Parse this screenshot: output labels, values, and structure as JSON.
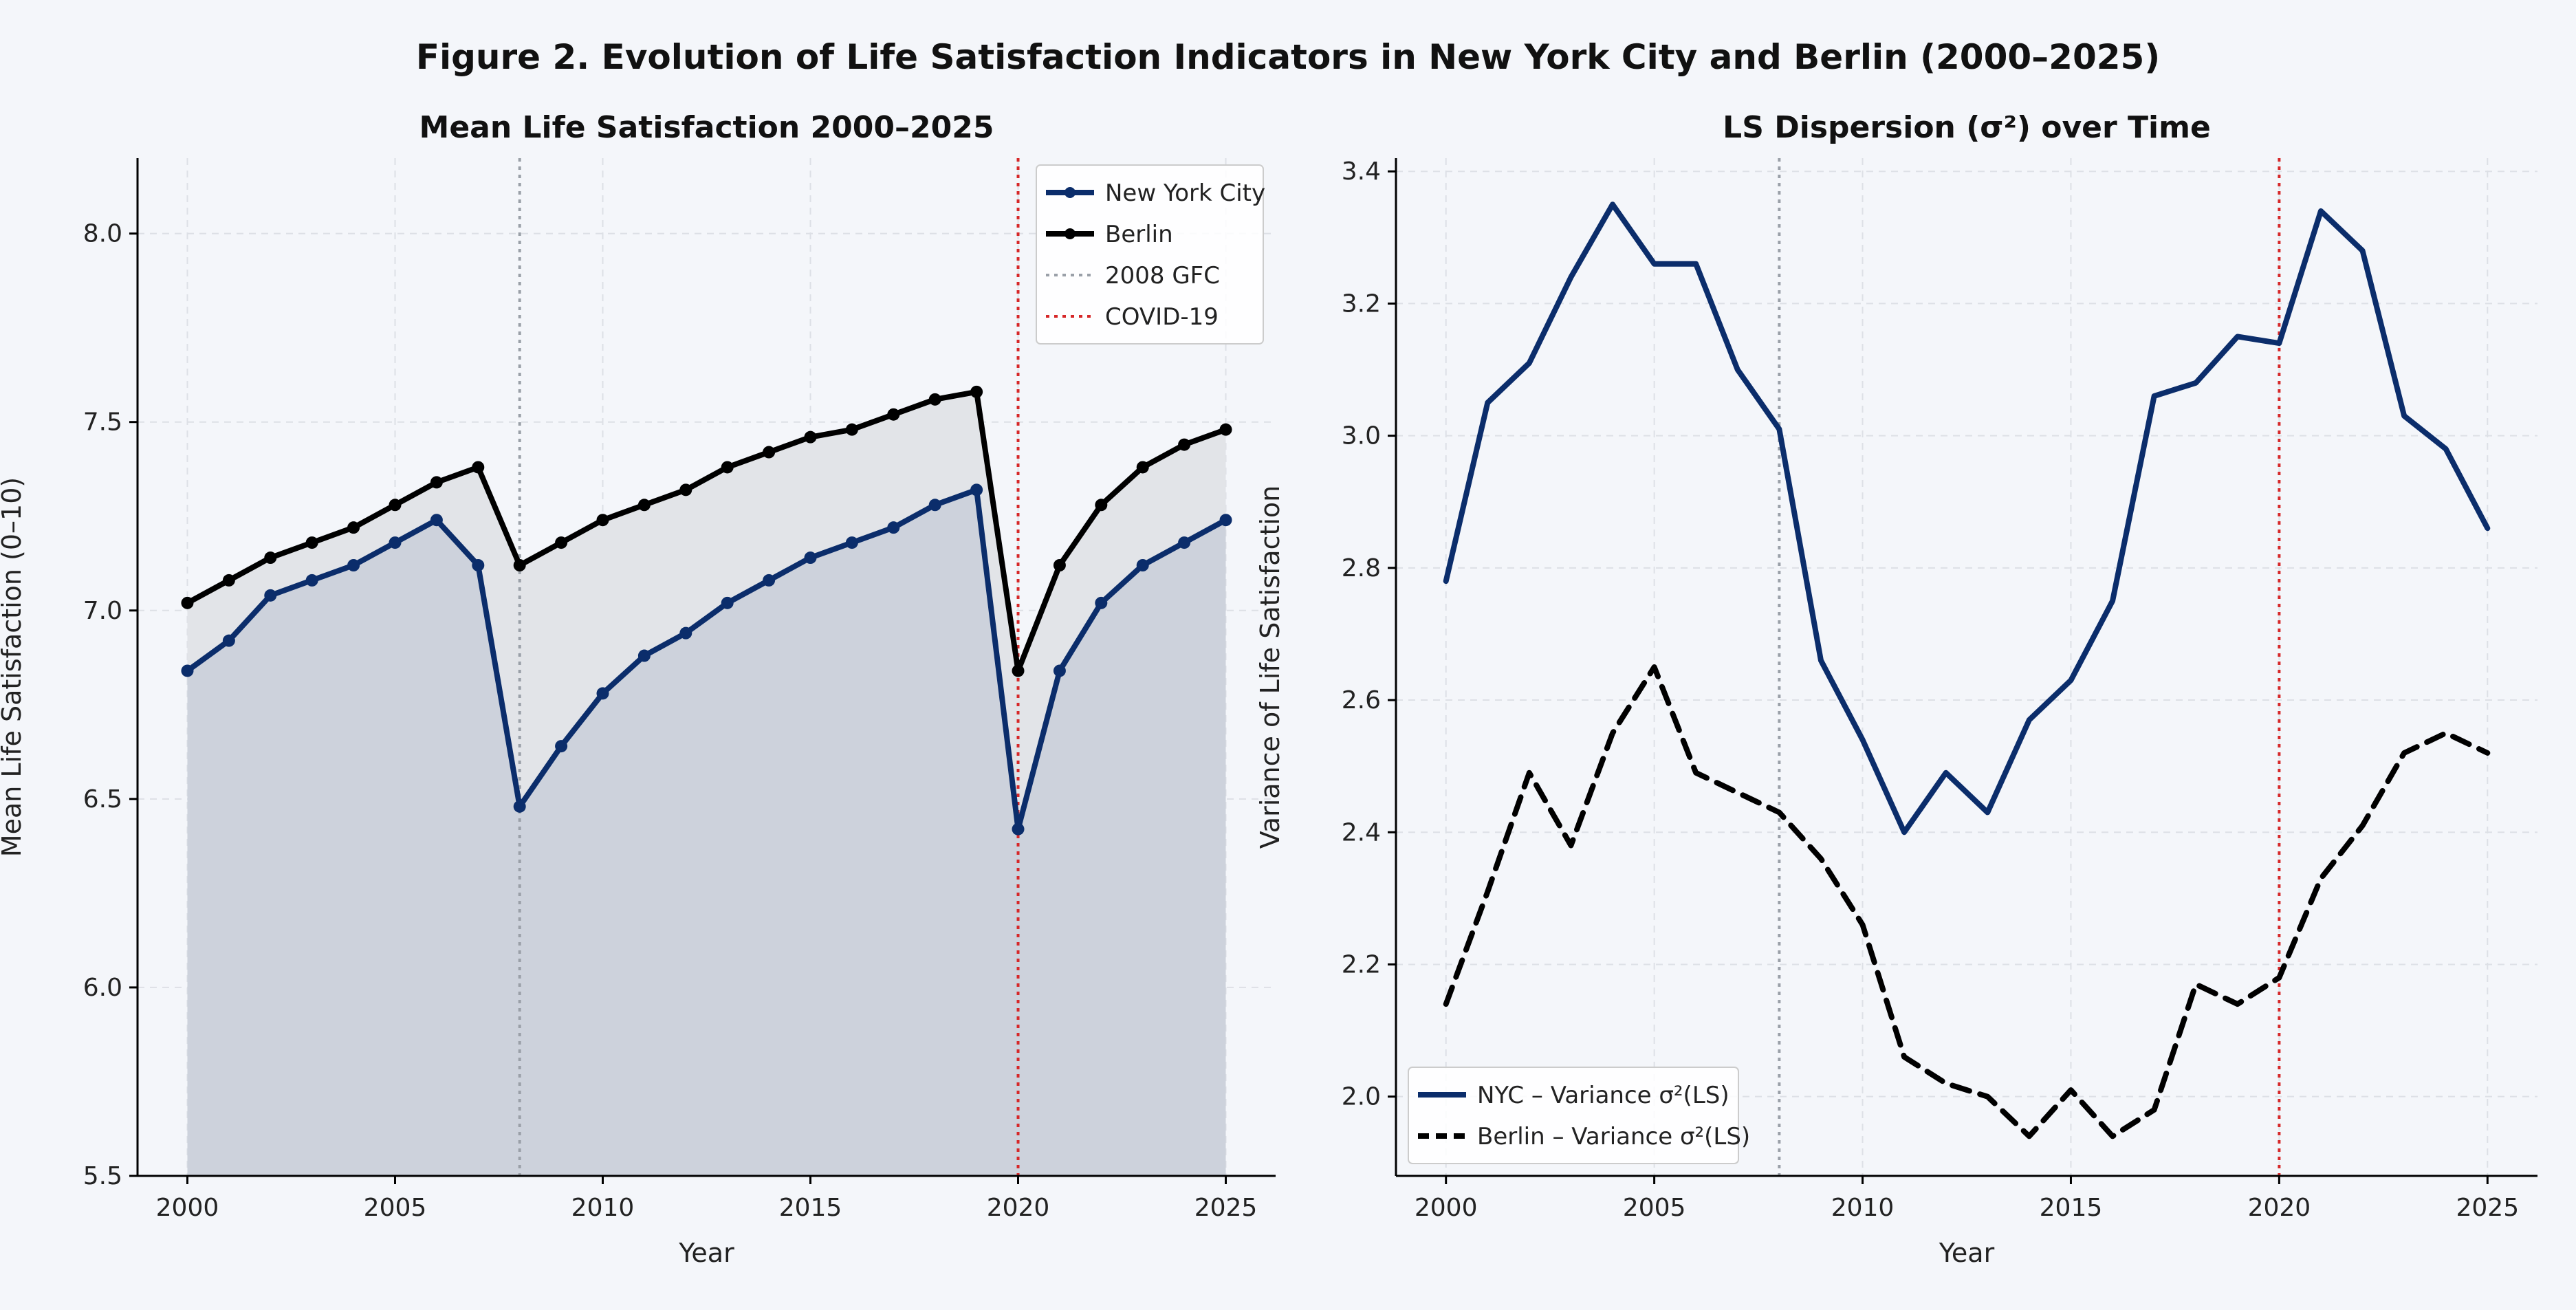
{
  "figure": {
    "title": "Figure 2. Evolution of Life Satisfaction Indicators in New York City and Berlin (2000–2025)",
    "background": "#f4f6fa",
    "colors": {
      "nyc": "#0b2d6b",
      "berlin": "#000000",
      "gfc": "#9aa0a8",
      "covid": "#d62728",
      "nyc_fill": "#cdd2dc",
      "gap_fill": "#e2e4e8",
      "grid": "#dde0e6"
    }
  },
  "chart_data": [
    {
      "type": "line",
      "title": "Mean Life Satisfaction 2000–2025",
      "xlabel": "Year",
      "ylabel": "Mean Life Satisfaction (0–10)",
      "xlim": [
        1998.8,
        2026.2
      ],
      "ylim": [
        5.5,
        8.2
      ],
      "xticks": [
        "2000",
        "2005",
        "2010",
        "2015",
        "2020",
        "2025"
      ],
      "yticks": [
        "5.5",
        "6.0",
        "6.5",
        "7.0",
        "7.5",
        "8.0"
      ],
      "grid": true,
      "legend_position": "top-right",
      "x": [
        2000,
        2001,
        2002,
        2003,
        2004,
        2005,
        2006,
        2007,
        2008,
        2009,
        2010,
        2011,
        2012,
        2013,
        2014,
        2015,
        2016,
        2017,
        2018,
        2019,
        2020,
        2021,
        2022,
        2023,
        2024,
        2025
      ],
      "series": [
        {
          "name": "New York City",
          "values": [
            6.84,
            6.92,
            7.04,
            7.08,
            7.12,
            7.18,
            7.24,
            7.12,
            6.48,
            6.64,
            6.78,
            6.88,
            6.94,
            7.02,
            7.08,
            7.14,
            7.18,
            7.22,
            7.28,
            7.32,
            6.42,
            6.84,
            7.02,
            7.12,
            7.18,
            7.24
          ]
        },
        {
          "name": "Berlin",
          "values": [
            7.02,
            7.08,
            7.14,
            7.18,
            7.22,
            7.28,
            7.34,
            7.38,
            7.12,
            7.18,
            7.24,
            7.28,
            7.32,
            7.38,
            7.42,
            7.46,
            7.48,
            7.52,
            7.56,
            7.58,
            6.84,
            7.12,
            7.28,
            7.38,
            7.44,
            7.48
          ]
        }
      ],
      "event_lines": [
        {
          "name": "2008 GFC",
          "x": 2008
        },
        {
          "name": "COVID-19",
          "x": 2020
        }
      ]
    },
    {
      "type": "line",
      "title": "LS Dispersion (σ²) over Time",
      "xlabel": "Year",
      "ylabel": "Variance of Life Satisfaction",
      "xlim": [
        1998.8,
        2026.2
      ],
      "ylim": [
        1.88,
        3.42
      ],
      "xticks": [
        "2000",
        "2005",
        "2010",
        "2015",
        "2020",
        "2025"
      ],
      "yticks": [
        "2.0",
        "2.2",
        "2.4",
        "2.6",
        "2.8",
        "3.0",
        "3.2",
        "3.4"
      ],
      "grid": true,
      "legend_position": "bottom-left",
      "x": [
        2000,
        2001,
        2002,
        2003,
        2004,
        2005,
        2006,
        2007,
        2008,
        2009,
        2010,
        2011,
        2012,
        2013,
        2014,
        2015,
        2016,
        2017,
        2018,
        2019,
        2020,
        2021,
        2022,
        2023,
        2024,
        2025
      ],
      "series": [
        {
          "name": "NYC – Variance σ²(LS)",
          "values": [
            2.78,
            3.05,
            3.11,
            3.24,
            3.35,
            3.26,
            3.26,
            3.1,
            3.01,
            2.66,
            2.54,
            2.4,
            2.49,
            2.43,
            2.57,
            2.63,
            2.75,
            3.06,
            3.08,
            3.15,
            3.14,
            3.34,
            3.28,
            3.03,
            2.98,
            2.86
          ]
        },
        {
          "name": "Berlin – Variance σ²(LS)",
          "values": [
            2.14,
            2.31,
            2.49,
            2.38,
            2.55,
            2.65,
            2.49,
            2.46,
            2.43,
            2.36,
            2.26,
            2.06,
            2.02,
            2.0,
            1.94,
            2.01,
            1.94,
            1.98,
            2.17,
            2.14,
            2.18,
            2.33,
            2.41,
            2.52,
            2.55,
            2.52
          ]
        }
      ],
      "event_lines": [
        {
          "name": "2008 GFC",
          "x": 2008
        },
        {
          "name": "COVID-19",
          "x": 2020
        }
      ]
    }
  ]
}
